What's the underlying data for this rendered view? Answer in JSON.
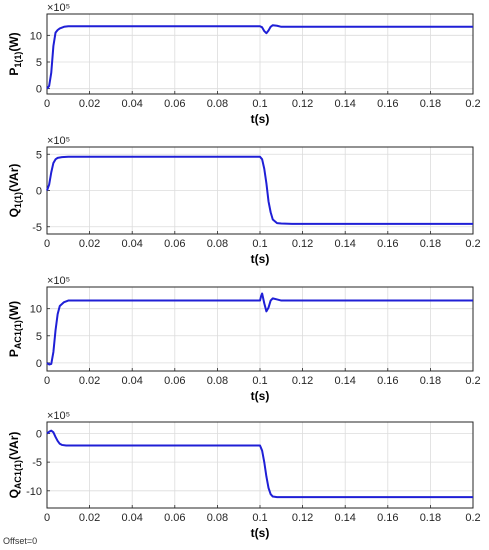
{
  "footer": {
    "offset_text": "Offset=0"
  },
  "chart_data": [
    {
      "type": "line",
      "ylabel": {
        "main": "P",
        "sub": "1(1)",
        "unit": "(W)"
      },
      "xlabel": "t(s)",
      "multiplier": "×10⁵",
      "xlim": [
        0,
        0.2
      ],
      "ylim": [
        -1,
        14
      ],
      "yticks": [
        0,
        5,
        10
      ],
      "xticks": [
        0,
        0.02,
        0.04,
        0.06,
        0.08,
        0.1,
        0.12,
        0.14,
        0.16,
        0.18,
        0.2
      ],
      "grid": true,
      "color": "#1f1fd6",
      "series": [
        {
          "x": [
            0,
            0.001,
            0.002,
            0.003,
            0.004,
            0.005,
            0.006,
            0.008,
            0.01,
            0.1,
            0.101,
            0.102,
            0.103,
            0.104,
            0.105,
            0.106,
            0.108,
            0.11,
            0.2
          ],
          "y": [
            0,
            0.5,
            3,
            8,
            10.5,
            11,
            11.3,
            11.6,
            11.7,
            11.7,
            11.5,
            10.8,
            10.4,
            10.9,
            11.6,
            11.9,
            11.8,
            11.6,
            11.6
          ]
        }
      ]
    },
    {
      "type": "line",
      "ylabel": {
        "main": "Q",
        "sub": "1(1)",
        "unit": "(VAr)"
      },
      "xlabel": "t(s)",
      "multiplier": "×10⁵",
      "xlim": [
        0,
        0.2
      ],
      "ylim": [
        -6,
        6
      ],
      "yticks": [
        -5,
        0,
        5
      ],
      "xticks": [
        0,
        0.02,
        0.04,
        0.06,
        0.08,
        0.1,
        0.12,
        0.14,
        0.16,
        0.18,
        0.2
      ],
      "grid": true,
      "color": "#1f1fd6",
      "series": [
        {
          "x": [
            0,
            0.001,
            0.002,
            0.003,
            0.004,
            0.005,
            0.007,
            0.01,
            0.1,
            0.101,
            0.102,
            0.103,
            0.104,
            0.105,
            0.106,
            0.108,
            0.11,
            0.115,
            0.2
          ],
          "y": [
            0,
            0.8,
            2.5,
            3.8,
            4.3,
            4.5,
            4.6,
            4.65,
            4.65,
            4.3,
            3,
            1,
            -1.5,
            -3,
            -4,
            -4.5,
            -4.55,
            -4.6,
            -4.6
          ]
        }
      ]
    },
    {
      "type": "line",
      "ylabel": {
        "main": "P",
        "sub": "AC1(1)",
        "unit": "(W)"
      },
      "xlabel": "t(s)",
      "multiplier": "×10⁵",
      "xlim": [
        0,
        0.2
      ],
      "ylim": [
        -1.5,
        14
      ],
      "yticks": [
        0,
        5,
        10
      ],
      "xticks": [
        0,
        0.02,
        0.04,
        0.06,
        0.08,
        0.1,
        0.12,
        0.14,
        0.16,
        0.18,
        0.2
      ],
      "grid": true,
      "color": "#1f1fd6",
      "series": [
        {
          "x": [
            0,
            0.001,
            0.002,
            0.003,
            0.004,
            0.005,
            0.006,
            0.008,
            0.01,
            0.1,
            0.1005,
            0.101,
            0.102,
            0.103,
            0.104,
            0.105,
            0.106,
            0.108,
            0.11,
            0.2
          ],
          "y": [
            0,
            -0.3,
            -0.2,
            2,
            6,
            9,
            10.5,
            11.2,
            11.5,
            11.5,
            12.3,
            12.8,
            11,
            9.5,
            10.2,
            11.5,
            11.9,
            11.7,
            11.5,
            11.5
          ]
        }
      ]
    },
    {
      "type": "line",
      "ylabel": {
        "main": "Q",
        "sub": "AC1(1)",
        "unit": "(VAr)"
      },
      "xlabel": "t(s)",
      "multiplier": "×10⁵",
      "xlim": [
        0,
        0.2
      ],
      "ylim": [
        -13,
        2
      ],
      "yticks": [
        -10,
        -5,
        0
      ],
      "xticks": [
        0,
        0.02,
        0.04,
        0.06,
        0.08,
        0.1,
        0.12,
        0.14,
        0.16,
        0.18,
        0.2
      ],
      "grid": true,
      "color": "#1f1fd6",
      "series": [
        {
          "x": [
            0,
            0.001,
            0.002,
            0.003,
            0.004,
            0.005,
            0.006,
            0.007,
            0.009,
            0.012,
            0.1,
            0.101,
            0.102,
            0.103,
            0.104,
            0.105,
            0.106,
            0.108,
            0.11,
            0.2
          ],
          "y": [
            0,
            0.3,
            0.5,
            0.2,
            -0.6,
            -1.3,
            -1.8,
            -2,
            -2.1,
            -2.1,
            -2.1,
            -3,
            -5,
            -7.5,
            -9.5,
            -10.6,
            -11,
            -11.1,
            -11.1,
            -11.1
          ]
        }
      ]
    }
  ]
}
